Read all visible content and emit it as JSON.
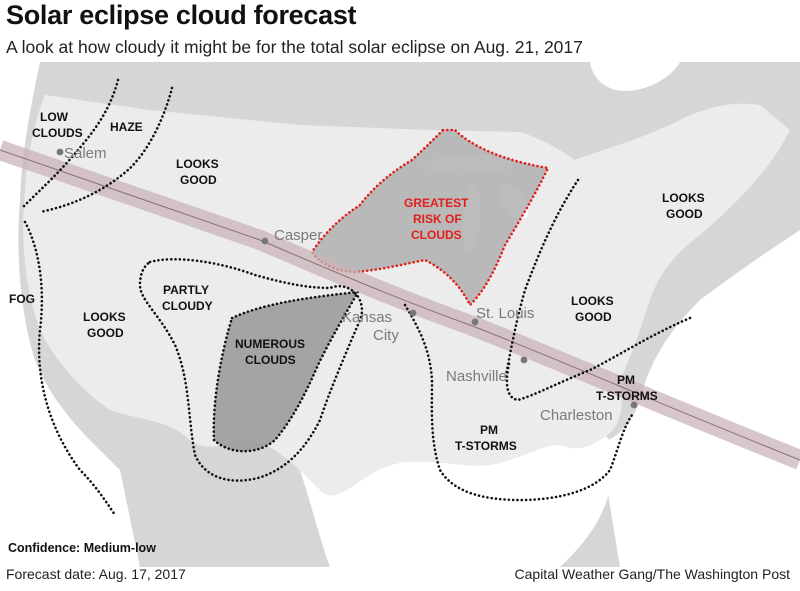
{
  "header": {
    "title": "Solar eclipse cloud forecast",
    "subtitle": "A look at how cloudy it might be for the total solar eclipse on Aug. 21, 2017"
  },
  "map": {
    "cities": [
      "Salem",
      "Casper",
      "Kansas",
      "City",
      "St. Louis",
      "Nashville",
      "Charleston"
    ],
    "zones": {
      "low_clouds": [
        "LOW",
        "CLOUDS"
      ],
      "haze": "HAZE",
      "looks_good_nw": [
        "LOOKS",
        "GOOD"
      ],
      "fog": "FOG",
      "looks_good_west": [
        "LOOKS",
        "GOOD"
      ],
      "partly_cloudy": [
        "PARTLY",
        "CLOUDY"
      ],
      "numerous_clouds": [
        "NUMEROUS",
        "CLOUDS"
      ],
      "greatest_risk": [
        "GREATEST",
        "RISK OF",
        "CLOUDS"
      ],
      "looks_good_ne": [
        "LOOKS",
        "GOOD"
      ],
      "looks_good_east": [
        "LOOKS",
        "GOOD"
      ],
      "pm_tstorms_se": [
        "PM",
        "T-STORMS"
      ],
      "pm_tstorms_south": [
        "PM",
        "T-STORMS"
      ]
    },
    "colors": {
      "land_us": "#ececec",
      "land_other": "#d6d6d6",
      "water": "#ffffff",
      "cloud_zone": "#a9a9a9",
      "risk_outline": "#e0201b",
      "eclipse_path": "#c9b3b8"
    }
  },
  "footer": {
    "confidence": "Confidence: Medium-low",
    "forecast_date": "Forecast date: Aug. 17, 2017",
    "credit": "Capital Weather Gang/The Washington Post"
  }
}
